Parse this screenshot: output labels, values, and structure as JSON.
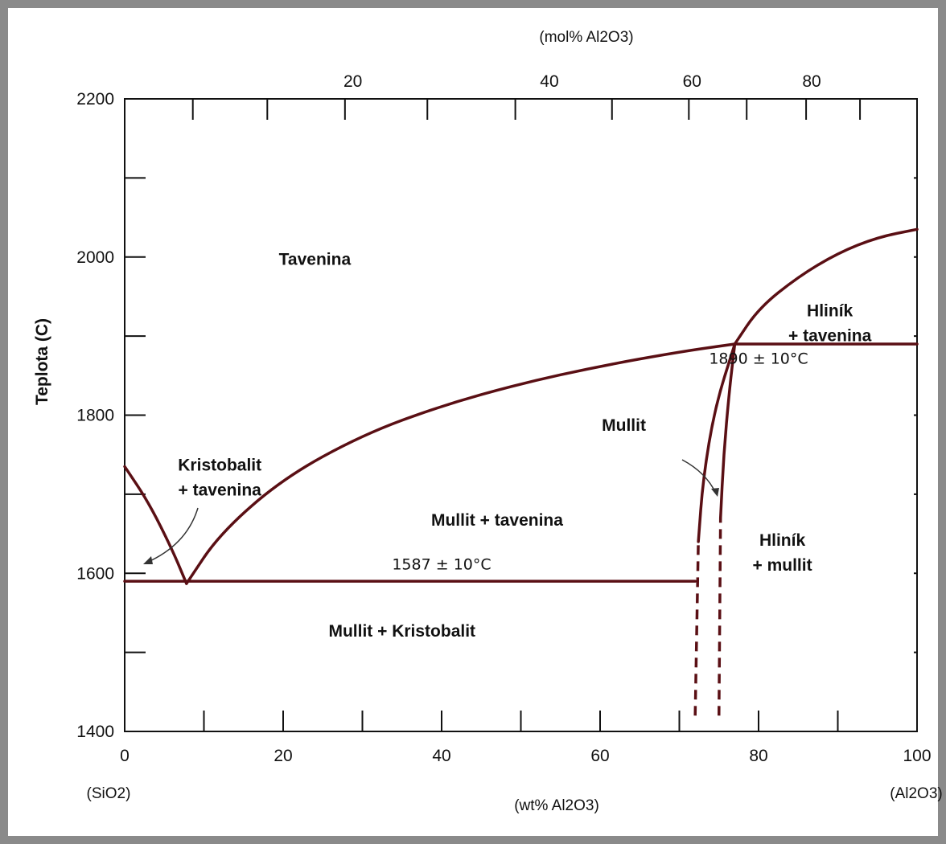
{
  "chart_data": {
    "type": "line",
    "title": "",
    "xlabel": "(wt% Al2O3)",
    "x2label": "(mol% Al2O3)",
    "ylabel": "Teplota (C)",
    "xlim": [
      0,
      100
    ],
    "ylim": [
      1400,
      2200
    ],
    "x_ticks": [
      "0",
      "20",
      "40",
      "60",
      "80",
      "100"
    ],
    "x2_ticks": [
      "20",
      "40",
      "60",
      "80"
    ],
    "y_ticks": [
      "1400",
      "1600",
      "1800",
      "2000",
      "2200"
    ],
    "end_labels": {
      "left": "(SiO2)",
      "right": "(Al2O3)"
    },
    "series": [
      {
        "name": "",
        "style": "solid",
        "x": [
          0,
          3,
          6,
          7.8
        ],
        "y": [
          1735,
          1690,
          1630,
          1587
        ]
      },
      {
        "name": "",
        "style": "solid",
        "x": [
          7.8,
          12,
          20,
          30,
          40,
          50,
          60,
          70,
          77
        ],
        "y": [
          1587,
          1650,
          1720,
          1775,
          1812,
          1840,
          1862,
          1880,
          1890
        ]
      },
      {
        "name": "",
        "style": "solid",
        "x": [
          0,
          72
        ],
        "y": [
          1590,
          1590
        ]
      },
      {
        "name": "",
        "style": "solid",
        "x": [
          77,
          100
        ],
        "y": [
          1890,
          1890
        ]
      },
      {
        "name": "",
        "style": "solid",
        "x": [
          77,
          80,
          85,
          90,
          95,
          100
        ],
        "y": [
          1890,
          1935,
          1975,
          2005,
          2025,
          2035
        ]
      },
      {
        "name": "",
        "style": "solid",
        "x": [
          72.4,
          73,
          74.5,
          77
        ],
        "y": [
          1640,
          1720,
          1810,
          1890
        ]
      },
      {
        "name": "",
        "style": "solid",
        "x": [
          75.2,
          75.6,
          76.3,
          77
        ],
        "y": [
          1670,
          1750,
          1830,
          1890
        ]
      },
      {
        "name": "",
        "style": "dashed",
        "x": [
          72,
          72.4
        ],
        "y": [
          1420,
          1640
        ]
      },
      {
        "name": "",
        "style": "dashed",
        "x": [
          75,
          75.2
        ],
        "y": [
          1420,
          1670
        ]
      }
    ],
    "regions": [
      {
        "label": "Tavenina",
        "x": 24,
        "y": 1990
      },
      {
        "label": "Kristobalit",
        "label2": "+ tavenina",
        "x": 12,
        "y": 1730
      },
      {
        "label": "Mullit + tavenina",
        "x": 47,
        "y": 1660
      },
      {
        "label": "Mullit + Kristobalit",
        "x": 35,
        "y": 1520
      },
      {
        "label": "Hliník",
        "label2": "+ tavenina",
        "x": 89,
        "y": 1925
      },
      {
        "label": "Hliník",
        "label2": "+ mullit",
        "x": 83,
        "y": 1635
      },
      {
        "label": "Mullit",
        "x": 63,
        "y": 1780
      }
    ],
    "annotations": [
      {
        "text": "1587 ± 10°C",
        "x": 40,
        "y": 1605
      },
      {
        "text": "1890 ± 10°C",
        "x": 80,
        "y": 1865
      }
    ],
    "grid": false,
    "legend": "none"
  }
}
